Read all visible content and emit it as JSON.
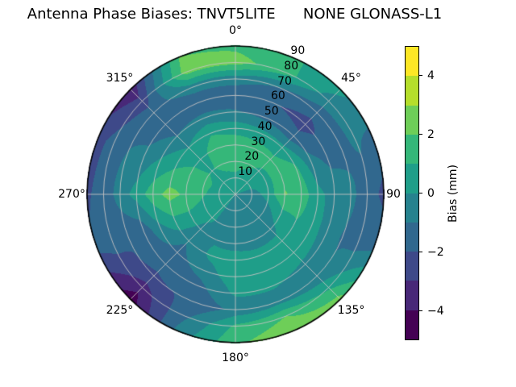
{
  "title": "Antenna Phase Biases: TNVT5LITE      NONE GLONASS-L1",
  "chart_data": {
    "type": "heatmap",
    "subtype": "polar_filled_contour",
    "title": "Antenna Phase Biases: TNVT5LITE      NONE GLONASS-L1",
    "angular_ticks": [
      {
        "label": "0°",
        "deg": 0
      },
      {
        "label": "45°",
        "deg": 45
      },
      {
        "label": "90",
        "deg": 90
      },
      {
        "label": "135°",
        "deg": 135
      },
      {
        "label": "180°",
        "deg": 180
      },
      {
        "label": "225°",
        "deg": 225
      },
      {
        "label": "270°",
        "deg": 270
      },
      {
        "label": "315°",
        "deg": 315
      }
    ],
    "radial_ticks": [
      {
        "label": "10",
        "zenith": 10
      },
      {
        "label": "20",
        "zenith": 20
      },
      {
        "label": "30",
        "zenith": 30
      },
      {
        "label": "40",
        "zenith": 40
      },
      {
        "label": "50",
        "zenith": 50
      },
      {
        "label": "60",
        "zenith": 60
      },
      {
        "label": "70",
        "zenith": 70
      },
      {
        "label": "80",
        "zenith": 80
      },
      {
        "label": "90",
        "zenith": 90
      }
    ],
    "grid": {
      "azimuth_deg": [
        0,
        22.5,
        45,
        67.5,
        90,
        112.5,
        135,
        157.5,
        180,
        202.5,
        225,
        247.5,
        270,
        292.5,
        315,
        337.5
      ],
      "zenith_deg": [
        0,
        10,
        20,
        30,
        40,
        50,
        60,
        70,
        80,
        90
      ],
      "zenith_max": 90,
      "values_mm": [
        [
          0.0,
          0.8,
          1.4,
          1.6,
          0.6,
          -0.9,
          -1.6,
          -0.6,
          2.4,
          1.8
        ],
        [
          0.0,
          0.6,
          1.2,
          1.5,
          0.4,
          -1.3,
          -1.9,
          -1.0,
          1.4,
          1.2
        ],
        [
          0.0,
          0.4,
          0.9,
          1.3,
          0.3,
          -1.7,
          -2.4,
          -1.6,
          -0.4,
          0.3
        ],
        [
          0.0,
          0.1,
          0.6,
          1.7,
          1.2,
          -0.6,
          -1.3,
          -1.2,
          -0.9,
          -1.3
        ],
        [
          0.0,
          -0.5,
          0.4,
          2.1,
          1.6,
          0.3,
          -0.4,
          -0.8,
          -1.4,
          -2.3
        ],
        [
          0.0,
          -0.6,
          -0.3,
          0.7,
          1.0,
          0.4,
          -0.4,
          -1.1,
          -1.3,
          -1.0
        ],
        [
          0.0,
          -0.8,
          -0.9,
          -0.3,
          0.3,
          0.5,
          -0.2,
          -0.8,
          0.8,
          2.4
        ],
        [
          0.0,
          -0.9,
          -1.0,
          -0.5,
          0.4,
          0.6,
          0.1,
          -0.4,
          2.0,
          2.8
        ],
        [
          0.0,
          -0.7,
          -0.8,
          -0.3,
          0.4,
          0.6,
          0.2,
          -0.7,
          1.2,
          1.8
        ],
        [
          0.0,
          -0.3,
          -0.4,
          -0.1,
          0.2,
          -0.5,
          -1.4,
          -1.9,
          -1.2,
          -0.6
        ],
        [
          0.0,
          0.2,
          0.2,
          -0.3,
          -0.9,
          -1.4,
          -1.8,
          -2.1,
          -3.6,
          -4.6
        ],
        [
          0.0,
          0.5,
          0.7,
          0.9,
          0.8,
          -0.2,
          -1.7,
          -1.9,
          -1.6,
          -1.9
        ],
        [
          0.0,
          0.6,
          1.1,
          1.8,
          2.4,
          1.6,
          0.4,
          -0.5,
          -1.7,
          -2.1
        ],
        [
          0.0,
          0.7,
          1.3,
          1.5,
          1.0,
          0.2,
          -0.7,
          -1.0,
          -1.6,
          -2.4
        ],
        [
          0.0,
          0.6,
          0.9,
          0.5,
          0.0,
          -1.0,
          -1.7,
          -1.4,
          -2.7,
          -3.8
        ],
        [
          0.0,
          0.7,
          1.3,
          1.6,
          0.9,
          -0.7,
          -1.8,
          -0.5,
          2.4,
          2.0
        ]
      ]
    },
    "levels_mm": [
      -5,
      -4,
      -3,
      -2,
      -1,
      0,
      1,
      2,
      3,
      4,
      5
    ],
    "palette": [
      "#440154",
      "#482878",
      "#3e4989",
      "#31688e",
      "#26828e",
      "#1f9e89",
      "#35b779",
      "#6ece58",
      "#b5de2b",
      "#fde725"
    ],
    "grid_line_color": "#c6c3c3",
    "outline_color": "#000000",
    "legend_position": "right",
    "colorbar": {
      "label": "Bias (mm)",
      "min": -5,
      "max": 5,
      "ticks": [
        {
          "label": "4",
          "value": 4
        },
        {
          "label": "2",
          "value": 2
        },
        {
          "label": "0",
          "value": 0
        },
        {
          "label": "−2",
          "value": -2
        },
        {
          "label": "−4",
          "value": -4
        }
      ]
    }
  }
}
